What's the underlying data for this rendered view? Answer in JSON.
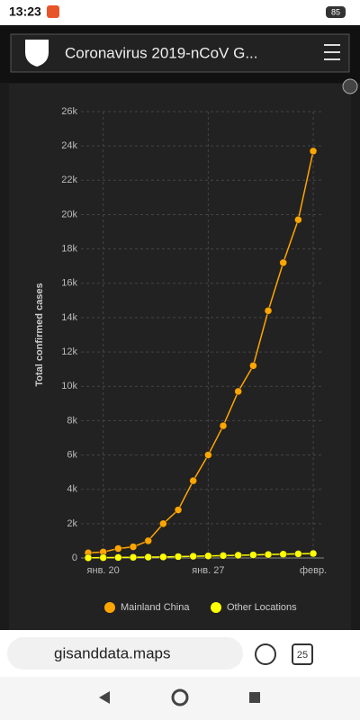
{
  "status": {
    "time": "13:23",
    "battery": "85"
  },
  "header": {
    "title": "Coronavirus 2019-nCoV G..."
  },
  "browser": {
    "url": "gisanddata.maps",
    "tabs": "25"
  },
  "chart_data": {
    "type": "line",
    "y_label": "Total confirmed cases",
    "categories": [
      null,
      "янв. 20",
      null,
      null,
      null,
      null,
      null,
      null,
      "янв. 27",
      null,
      null,
      null,
      null,
      null,
      null,
      "февр."
    ],
    "series": [
      {
        "name": "Mainland China",
        "color": "#ffa500",
        "values": [
          300,
          350,
          550,
          650,
          1000,
          2000,
          2800,
          4500,
          6000,
          7700,
          9700,
          11200,
          14400,
          17200,
          19700,
          23700
        ]
      },
      {
        "name": "Other Locations",
        "color": "#ffff00",
        "values": [
          10,
          20,
          30,
          40,
          50,
          60,
          80,
          100,
          120,
          140,
          160,
          180,
          200,
          220,
          240,
          260
        ]
      }
    ],
    "ylim": [
      0,
      26000
    ],
    "yticks": [
      0,
      {
        "value": 2000,
        "label": "2k"
      },
      {
        "value": 4000,
        "label": "4k"
      },
      {
        "value": 6000,
        "label": "6k"
      },
      {
        "value": 8000,
        "label": "8k"
      },
      {
        "value": 10000,
        "label": "10k"
      },
      {
        "value": 12000,
        "label": "12k"
      },
      {
        "value": 14000,
        "label": "14k"
      },
      {
        "value": 16000,
        "label": "16k"
      },
      {
        "value": 18000,
        "label": "18k"
      },
      {
        "value": 20000,
        "label": "20k"
      },
      {
        "value": 22000,
        "label": "22k"
      },
      {
        "value": 24000,
        "label": "24k"
      },
      {
        "value": 26000,
        "label": "26k"
      }
    ],
    "grid": true,
    "legend": "bottom"
  }
}
